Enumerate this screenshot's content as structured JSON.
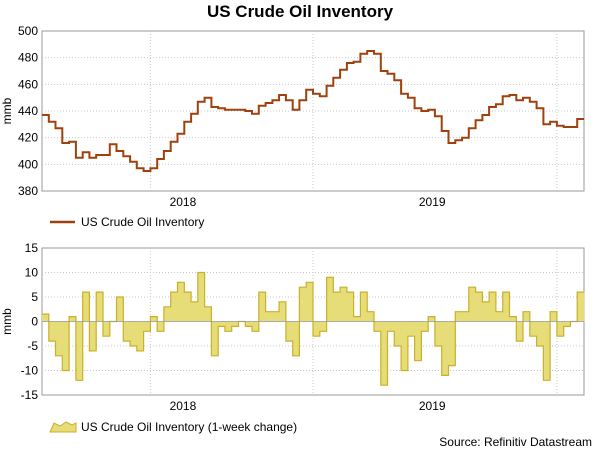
{
  "title": "US Crude Oil Inventory",
  "source": "Source: Refinitiv Datastream",
  "colors": {
    "level_line": "#a0410d",
    "change_fill": "#e6dc78",
    "change_line": "#c9b12a",
    "grid": "#c8c8c8"
  },
  "chart_data": [
    {
      "type": "line",
      "ylabel": "mmb",
      "ylim": [
        380,
        500
      ],
      "yticks": [
        380,
        400,
        420,
        440,
        460,
        480,
        500
      ],
      "xlim": [
        0,
        100
      ],
      "xticks": [
        {
          "pos": 26,
          "label": "2018"
        },
        {
          "pos": 72,
          "label": "2019"
        }
      ],
      "xgrid": [
        20,
        50,
        95
      ],
      "legend": "US Crude Oil Inventory",
      "legend_position": "bottom-left",
      "grid": true,
      "series": [
        {
          "name": "US Crude Oil Inventory",
          "values": [
            437,
            432,
            427,
            416,
            417,
            405,
            409,
            405,
            407,
            407,
            415,
            410,
            406,
            402,
            397,
            395,
            397,
            404,
            410,
            417,
            423,
            432,
            438,
            447,
            450,
            443,
            442,
            441,
            441,
            441,
            440,
            438,
            444,
            446,
            448,
            452,
            448,
            441,
            448,
            456,
            453,
            451,
            459,
            465,
            471,
            476,
            477,
            483,
            485,
            483,
            470,
            468,
            463,
            453,
            450,
            442,
            440,
            441,
            436,
            425,
            416,
            418,
            420,
            427,
            433,
            437,
            443,
            445,
            451,
            452,
            448,
            450,
            447,
            442,
            430,
            432,
            429,
            428,
            428,
            434
          ]
        }
      ]
    },
    {
      "type": "area",
      "ylabel": "mmb",
      "ylim": [
        -15,
        15
      ],
      "yticks": [
        -15,
        -10,
        -5,
        0,
        5,
        10,
        15
      ],
      "xlim": [
        0,
        100
      ],
      "xticks": [
        {
          "pos": 26,
          "label": "2018"
        },
        {
          "pos": 72,
          "label": "2019"
        }
      ],
      "xgrid": [
        20,
        50,
        95
      ],
      "legend": "US Crude Oil Inventory (1-week change)",
      "legend_position": "bottom-left",
      "grid": true,
      "series": [
        {
          "name": "US Crude Oil Inventory (1-week change)",
          "values": [
            1.5,
            -4,
            -7,
            -10,
            1,
            -12,
            6,
            -6,
            6,
            -3,
            0,
            5,
            -4,
            -5,
            -6,
            -2,
            1,
            -2,
            3,
            6,
            8,
            6,
            4,
            10,
            3,
            -7,
            -1,
            -2,
            -1,
            0,
            -1,
            -2,
            6,
            2,
            2,
            4,
            -4,
            -7,
            7,
            8,
            -3,
            -2,
            9,
            6,
            7,
            6,
            1,
            6,
            2,
            -2,
            -13,
            -2,
            -5,
            -10,
            -3,
            -8,
            -2,
            1,
            -5,
            -11,
            -9,
            2,
            2,
            7,
            6,
            4,
            6,
            2,
            6,
            1,
            -4,
            2,
            -3,
            -5,
            -12,
            2,
            -3,
            -1,
            0,
            6
          ]
        }
      ]
    }
  ]
}
